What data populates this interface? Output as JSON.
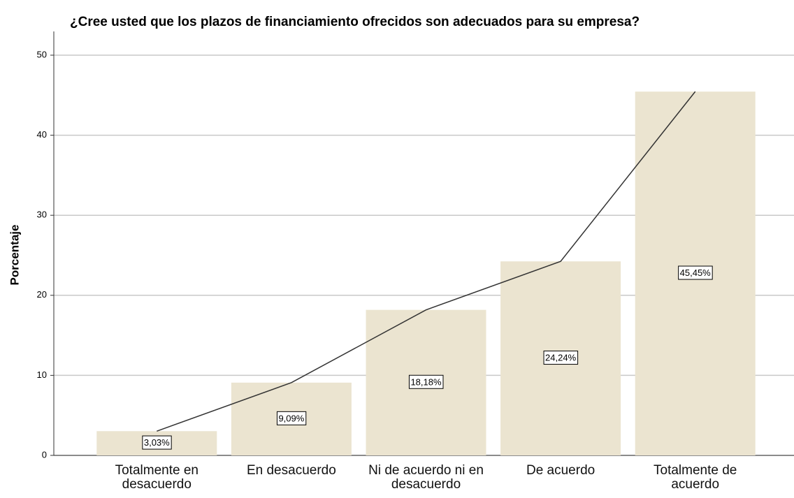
{
  "chart_data": {
    "type": "bar",
    "title": "¿Cree usted que los plazos de financiamiento ofrecidos son adecuados para su empresa?",
    "y_label": "Porcentaje",
    "categories": [
      "Totalmente en desacuerdo",
      "En desacuerdo",
      "Ni de acuerdo ni en desacuerdo",
      "De acuerdo",
      "Totalmente de acuerdo"
    ],
    "values": [
      3.03,
      9.09,
      18.18,
      24.24,
      45.45
    ],
    "value_labels": [
      "3,03%",
      "9,09%",
      "18,18%",
      "24,24%",
      "45,45%"
    ],
    "color": "#ebe4d0",
    "line_color": "#333333",
    "ylim": [
      0,
      50
    ],
    "yticks": [
      0,
      10,
      20,
      30,
      40,
      50
    ],
    "grid": true
  }
}
